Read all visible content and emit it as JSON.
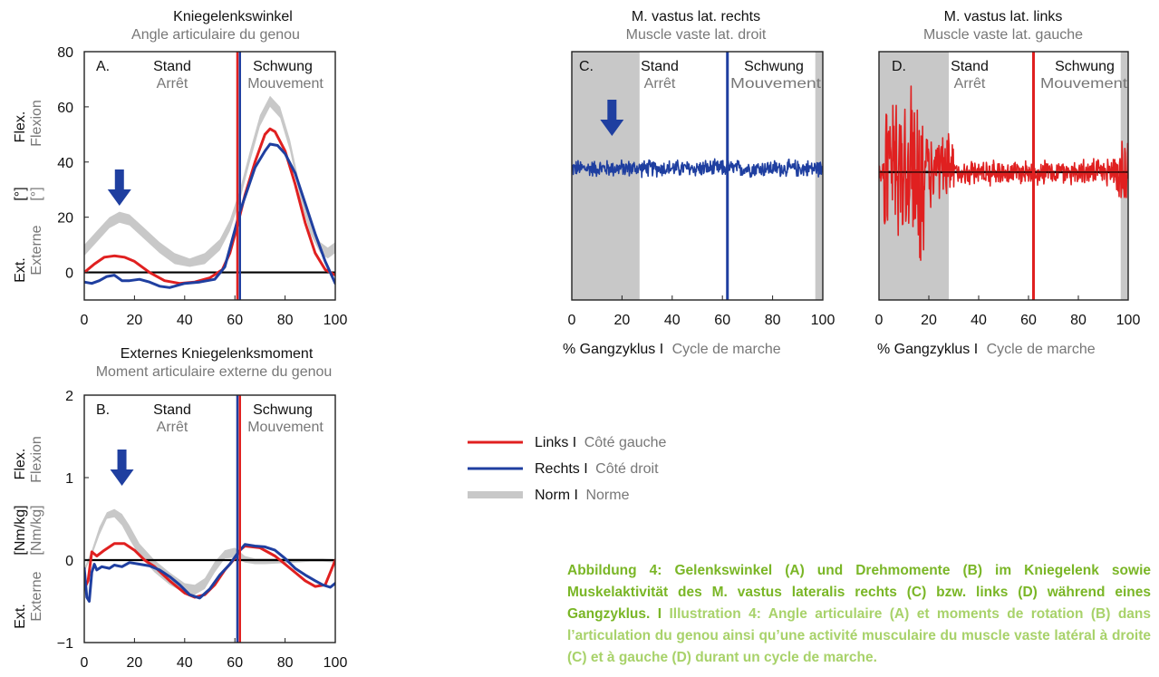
{
  "colors": {
    "left": "#e02020",
    "right": "#1f3fa0",
    "norm": "#c8c8c8",
    "shade": "#c8c8c8",
    "caption_de": "#7ab626",
    "caption_fr": "#a8d26a",
    "secondary_text": "#777777"
  },
  "legend": {
    "left_de": "Links I",
    "left_fr": "Côté gauche",
    "right_de": "Rechts I",
    "right_fr": "Côté droit",
    "norm_de": "Norm I",
    "norm_fr": "Norme"
  },
  "caption": {
    "de": "Abbildung 4: Gelenkswinkel (A) und Drehmomente (B) im Kniegelenk sowie Muskelaktivität des M. vastus lateralis rechts (C) bzw. links (D) während eines Gangzyklus. I",
    "fr": "Illustration 4: Angle articulaire (A) et moments de rotation (B) dans l’articulation du genou ainsi qu’une activité musculaire du muscle vaste latéral à droite (C) et à gauche (D) durant un cycle de marche."
  },
  "chart_data": [
    {
      "id": "A",
      "type": "line",
      "panel_label": "A.",
      "title": "Kniegelenkswinkel",
      "subtitle": "Angle articulaire du genou",
      "phase_labels": {
        "stand_de": "Stand",
        "stand_fr": "Arrêt",
        "swing_de": "Schwung",
        "swing_fr": "Mouvement"
      },
      "ylabel": {
        "top_de": "Flex.",
        "top_fr": "Flexion",
        "mid_de": "[°]",
        "mid_fr": "[°]",
        "bottom_de": "Ext.",
        "bottom_fr": "Externe"
      },
      "xlim": [
        0,
        100
      ],
      "ylim": [
        -10,
        80
      ],
      "xticks": [
        0,
        20,
        40,
        60,
        80,
        100
      ],
      "yticks": [
        0,
        20,
        40,
        60,
        80
      ],
      "ytick_labels": [
        "0",
        "20",
        "40",
        "60",
        "80"
      ],
      "xtick_labels": [
        "0",
        "20",
        "40",
        "60",
        "80",
        "100"
      ],
      "zero_line": 0,
      "vline_left": 61,
      "vline_right": 62,
      "arrow_x": 14,
      "norm_band": {
        "x": [
          0,
          5,
          10,
          14,
          18,
          24,
          30,
          36,
          42,
          48,
          54,
          58,
          62,
          66,
          70,
          74,
          78,
          82,
          86,
          90,
          94,
          97,
          100
        ],
        "lower": [
          6,
          11,
          16,
          18,
          17,
          12,
          7,
          3,
          2,
          3,
          8,
          15,
          26,
          40,
          53,
          60,
          56,
          44,
          27,
          14,
          7,
          5,
          7
        ],
        "upper": [
          10,
          15,
          20,
          22,
          21,
          16,
          11,
          7,
          5,
          7,
          12,
          19,
          30,
          44,
          57,
          64,
          60,
          48,
          31,
          18,
          11,
          9,
          11
        ]
      },
      "series": [
        {
          "name": "Links",
          "color": "left",
          "x": [
            0,
            4,
            8,
            12,
            16,
            20,
            26,
            32,
            38,
            44,
            50,
            55,
            58,
            61,
            64,
            68,
            72,
            74,
            76,
            80,
            84,
            88,
            92,
            96,
            100
          ],
          "y": [
            0,
            3,
            5.5,
            6,
            5.5,
            4,
            0,
            -3,
            -4,
            -3.5,
            -2,
            1,
            7,
            17,
            28,
            40,
            50,
            52,
            51,
            44,
            32,
            18,
            7,
            1,
            -1
          ]
        },
        {
          "name": "Rechts",
          "color": "right",
          "x": [
            0,
            3,
            6,
            9,
            12,
            15,
            18,
            22,
            26,
            30,
            34,
            40,
            46,
            52,
            56,
            59,
            62,
            65,
            68,
            72,
            74,
            77,
            80,
            84,
            88,
            92,
            96,
            100
          ],
          "y": [
            -3.5,
            -4,
            -3,
            -1.5,
            -1,
            -3,
            -3,
            -2.5,
            -3.5,
            -5,
            -5.5,
            -4,
            -3.5,
            -2.5,
            2,
            12,
            22,
            30,
            38,
            44,
            46.5,
            46,
            43,
            36,
            25,
            14,
            4,
            -4
          ]
        }
      ]
    },
    {
      "id": "B",
      "type": "line",
      "panel_label": "B.",
      "title": "Externes Kniegelenksmoment",
      "subtitle": "Moment articulaire externe du genou",
      "phase_labels": {
        "stand_de": "Stand",
        "stand_fr": "Arrêt",
        "swing_de": "Schwung",
        "swing_fr": "Mouvement"
      },
      "ylabel": {
        "top_de": "Flex.",
        "top_fr": "Flexion",
        "mid_de": "[Nm/kg]",
        "mid_fr": "[Nm/kg]",
        "bottom_de": "Ext.",
        "bottom_fr": "Externe"
      },
      "xlim": [
        0,
        100
      ],
      "ylim": [
        -1,
        2
      ],
      "xticks": [
        0,
        20,
        40,
        60,
        80,
        100
      ],
      "yticks": [
        -1,
        0,
        1,
        2
      ],
      "ytick_labels": [
        "−1",
        "0",
        "1",
        "2"
      ],
      "xtick_labels": [
        "0",
        "20",
        "40",
        "60",
        "80",
        "100"
      ],
      "zero_line": 0,
      "vline_left": 62,
      "vline_right": 61,
      "arrow_x": 15,
      "norm_band": {
        "x": [
          0,
          3,
          6,
          9,
          12,
          15,
          18,
          22,
          28,
          34,
          40,
          44,
          48,
          52,
          56,
          60,
          64,
          68,
          72,
          78,
          84,
          90,
          95,
          100
        ],
        "lower": [
          -0.15,
          0.05,
          0.3,
          0.5,
          0.52,
          0.42,
          0.25,
          0.05,
          -0.15,
          -0.3,
          -0.4,
          -0.42,
          -0.35,
          -0.15,
          0.02,
          0.03,
          -0.03,
          -0.05,
          -0.05,
          -0.04,
          -0.03,
          -0.02,
          -0.02,
          -0.03
        ],
        "upper": [
          -0.1,
          0.12,
          0.4,
          0.58,
          0.62,
          0.56,
          0.42,
          0.2,
          0.0,
          -0.15,
          -0.28,
          -0.3,
          -0.22,
          -0.02,
          0.12,
          0.15,
          0.05,
          0.02,
          0.02,
          0.02,
          0.02,
          0.02,
          0.02,
          0.01
        ]
      },
      "series": [
        {
          "name": "Links",
          "color": "left",
          "x": [
            0,
            1.5,
            3,
            5,
            8,
            12,
            16,
            20,
            24,
            28,
            34,
            40,
            44,
            48,
            52,
            56,
            60,
            62,
            64,
            70,
            76,
            80,
            84,
            88,
            92,
            96,
            98,
            100
          ],
          "y": [
            -0.35,
            -0.25,
            0.1,
            0.05,
            0.12,
            0.2,
            0.2,
            0.12,
            0.0,
            -0.08,
            -0.25,
            -0.4,
            -0.45,
            -0.42,
            -0.3,
            -0.12,
            0.02,
            0.12,
            0.17,
            0.15,
            0.05,
            -0.05,
            -0.15,
            -0.25,
            -0.32,
            -0.3,
            -0.15,
            0.0
          ]
        },
        {
          "name": "Rechts",
          "color": "right",
          "x": [
            0,
            1,
            2,
            3,
            4,
            5,
            7,
            10,
            12,
            15,
            18,
            22,
            26,
            30,
            34,
            38,
            42,
            46,
            50,
            54,
            58,
            61,
            64,
            68,
            72,
            76,
            80,
            84,
            88,
            92,
            95,
            98,
            100
          ],
          "y": [
            -0.1,
            -0.45,
            -0.5,
            -0.15,
            -0.05,
            -0.12,
            -0.08,
            -0.1,
            -0.06,
            -0.08,
            -0.03,
            -0.05,
            -0.07,
            -0.12,
            -0.2,
            -0.3,
            -0.42,
            -0.46,
            -0.35,
            -0.18,
            -0.05,
            0.08,
            0.19,
            0.17,
            0.16,
            0.12,
            0.02,
            -0.1,
            -0.18,
            -0.25,
            -0.3,
            -0.33,
            -0.28
          ]
        }
      ]
    },
    {
      "id": "C",
      "type": "line",
      "panel_label": "C.",
      "title": "M. vastus lat. rechts",
      "subtitle": "Muscle vaste lat. droit",
      "phase_labels": {
        "stand_de": "Stand",
        "stand_fr": "Arrêt",
        "swing_de": "Schwung",
        "swing_fr": "Mouvement"
      },
      "xlabel_de": "% Gangzyklus I",
      "xlabel_fr": "Cycle de marche",
      "xlim": [
        0,
        100
      ],
      "ylim": [
        -1,
        1
      ],
      "xticks": [
        0,
        20,
        40,
        60,
        80,
        100
      ],
      "xtick_labels": [
        "0",
        "20",
        "40",
        "60",
        "80",
        "100"
      ],
      "shade_ranges": [
        [
          0,
          27
        ],
        [
          97,
          100
        ]
      ],
      "vline": 62,
      "vline_color": "right",
      "arrow_x": 16,
      "baseline": 0.06,
      "signal_color": "right",
      "signal_amplitude": 0.08,
      "burst_ranges": []
    },
    {
      "id": "D",
      "type": "line",
      "panel_label": "D.",
      "title": "M. vastus lat. links",
      "subtitle": "Muscle vaste lat. gauche",
      "phase_labels": {
        "stand_de": "Stand",
        "stand_fr": "Arrêt",
        "swing_de": "Schwung",
        "swing_fr": "Mouvement"
      },
      "xlabel_de": "% Gangzyklus I",
      "xlabel_fr": "Cycle de marche",
      "xlim": [
        0,
        100
      ],
      "ylim": [
        -1,
        1
      ],
      "xticks": [
        0,
        20,
        40,
        60,
        80,
        100
      ],
      "xtick_labels": [
        "0",
        "20",
        "40",
        "60",
        "80",
        "100"
      ],
      "shade_ranges": [
        [
          0,
          28
        ],
        [
          97,
          100
        ]
      ],
      "vline": 62,
      "vline_color": "left",
      "baseline": 0.03,
      "signal_color": "left",
      "signal_amplitude": 0.12,
      "burst_ranges": [
        [
          2,
          18,
          0.85
        ],
        [
          18,
          30,
          0.35
        ],
        [
          94,
          100,
          0.4
        ]
      ]
    }
  ]
}
